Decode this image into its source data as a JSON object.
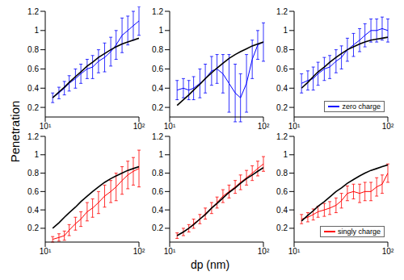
{
  "ylabel": "Penetration",
  "xlabel": "dp (nm)",
  "chart_data": [
    {
      "type": "line",
      "x": [
        12,
        14,
        16,
        18,
        21,
        24,
        28,
        32,
        37,
        43,
        50,
        57,
        66,
        76,
        87,
        100
      ],
      "xlim": [
        10,
        100
      ],
      "xticks": [
        {
          "value": 10,
          "label": "10¹"
        },
        {
          "value": 100,
          "label": "10²"
        }
      ],
      "log": "x",
      "ylim": [
        0.1,
        1.2
      ],
      "yticks": [
        0.2,
        0.4,
        0.6,
        0.8,
        1,
        1.2
      ],
      "series": [
        {
          "color": "#0000ff",
          "values": [
            0.3,
            0.35,
            0.4,
            0.45,
            0.5,
            0.55,
            0.6,
            0.62,
            0.68,
            0.72,
            0.78,
            0.85,
            0.95,
            1.0,
            1.05,
            1.1
          ],
          "error": [
            0.05,
            0.06,
            0.07,
            0.08,
            0.1,
            0.1,
            0.1,
            0.12,
            0.12,
            0.15,
            0.15,
            0.15,
            0.18,
            0.15,
            0.15,
            0.15
          ]
        },
        {
          "color": "#000000",
          "values": [
            0.3,
            0.36,
            0.41,
            0.46,
            0.52,
            0.57,
            0.63,
            0.67,
            0.72,
            0.76,
            0.8,
            0.83,
            0.86,
            0.88,
            0.9,
            0.92
          ]
        }
      ]
    },
    {
      "type": "line",
      "x": [
        12,
        14,
        16,
        18,
        21,
        24,
        28,
        32,
        37,
        43,
        50,
        57,
        66,
        76,
        87,
        100
      ],
      "xlim": [
        10,
        100
      ],
      "xticks": [
        {
          "value": 10,
          "label": "10¹"
        },
        {
          "value": 100,
          "label": "10²"
        }
      ],
      "log": "x",
      "ylim": [
        0.1,
        1.2
      ],
      "yticks": [
        0.2,
        0.4,
        0.6,
        0.8,
        1,
        1.2
      ],
      "series": [
        {
          "color": "#0000ff",
          "values": [
            0.38,
            0.4,
            0.38,
            0.4,
            0.45,
            0.5,
            0.58,
            0.6,
            0.55,
            0.45,
            0.35,
            0.3,
            0.45,
            0.7,
            0.85,
            0.88
          ],
          "error": [
            0.1,
            0.1,
            0.1,
            0.12,
            0.15,
            0.15,
            0.15,
            0.15,
            0.2,
            0.3,
            0.3,
            0.25,
            0.3,
            0.2,
            0.15,
            0.2
          ]
        },
        {
          "color": "#000000",
          "values": [
            0.22,
            0.28,
            0.33,
            0.38,
            0.44,
            0.5,
            0.56,
            0.61,
            0.66,
            0.71,
            0.75,
            0.78,
            0.81,
            0.84,
            0.86,
            0.88
          ]
        }
      ]
    },
    {
      "type": "line",
      "x": [
        12,
        14,
        16,
        18,
        21,
        24,
        28,
        32,
        37,
        43,
        50,
        57,
        66,
        76,
        87,
        100
      ],
      "xlim": [
        10,
        100
      ],
      "xticks": [
        {
          "value": 10,
          "label": "10¹"
        },
        {
          "value": 100,
          "label": "10²"
        }
      ],
      "log": "x",
      "ylim": [
        0.1,
        1.2
      ],
      "yticks": [
        0.2,
        0.4,
        0.6,
        0.8,
        1,
        1.2
      ],
      "legend": "lower right",
      "series": [
        {
          "name": "zero charge",
          "color": "#0000ff",
          "values": [
            0.45,
            0.48,
            0.5,
            0.55,
            0.6,
            0.62,
            0.68,
            0.72,
            0.8,
            0.85,
            0.9,
            0.95,
            1.0,
            1.0,
            1.02,
            1.0
          ],
          "error": [
            0.1,
            0.1,
            0.12,
            0.12,
            0.12,
            0.12,
            0.12,
            0.12,
            0.12,
            0.12,
            0.12,
            0.12,
            0.12,
            0.12,
            0.12,
            0.12
          ]
        },
        {
          "color": "#000000",
          "values": [
            0.4,
            0.46,
            0.52,
            0.57,
            0.62,
            0.67,
            0.72,
            0.76,
            0.8,
            0.83,
            0.86,
            0.88,
            0.9,
            0.91,
            0.92,
            0.93
          ]
        }
      ]
    },
    {
      "type": "line",
      "x": [
        12,
        14,
        16,
        18,
        21,
        24,
        28,
        32,
        37,
        43,
        50,
        57,
        66,
        76,
        87,
        100
      ],
      "xlim": [
        10,
        100
      ],
      "xticks": [
        {
          "value": 10,
          "label": "10¹"
        },
        {
          "value": 100,
          "label": "10²"
        }
      ],
      "log": "x",
      "ylim": [
        0.05,
        1.2
      ],
      "yticks": [
        0.2,
        0.4,
        0.6,
        0.8,
        1,
        1.2
      ],
      "series": [
        {
          "color": "#ff0000",
          "values": [
            0.08,
            0.1,
            0.12,
            0.18,
            0.25,
            0.3,
            0.38,
            0.42,
            0.48,
            0.55,
            0.6,
            0.65,
            0.72,
            0.78,
            0.82,
            0.85
          ],
          "error": [
            0.03,
            0.04,
            0.05,
            0.06,
            0.07,
            0.08,
            0.1,
            0.1,
            0.12,
            0.12,
            0.12,
            0.15,
            0.15,
            0.15,
            0.15,
            0.2
          ]
        },
        {
          "color": "#000000",
          "values": [
            0.2,
            0.26,
            0.32,
            0.37,
            0.43,
            0.49,
            0.55,
            0.6,
            0.65,
            0.7,
            0.74,
            0.77,
            0.8,
            0.83,
            0.85,
            0.87
          ]
        }
      ]
    },
    {
      "type": "line",
      "x": [
        12,
        14,
        16,
        18,
        21,
        24,
        28,
        32,
        37,
        43,
        50,
        57,
        66,
        76,
        87,
        100
      ],
      "xlim": [
        10,
        100
      ],
      "xticks": [
        {
          "value": 10,
          "label": "10¹"
        },
        {
          "value": 100,
          "label": "10²"
        }
      ],
      "log": "x",
      "ylim": [
        0.05,
        1.2
      ],
      "yticks": [
        0.2,
        0.4,
        0.6,
        0.8,
        1,
        1.2
      ],
      "series": [
        {
          "color": "#ff0000",
          "values": [
            0.12,
            0.16,
            0.2,
            0.25,
            0.3,
            0.36,
            0.42,
            0.48,
            0.55,
            0.6,
            0.65,
            0.7,
            0.75,
            0.8,
            0.85,
            0.9
          ],
          "error": [
            0.03,
            0.04,
            0.04,
            0.05,
            0.05,
            0.06,
            0.06,
            0.06,
            0.07,
            0.07,
            0.07,
            0.08,
            0.08,
            0.08,
            0.08,
            0.08
          ]
        },
        {
          "color": "#000000",
          "values": [
            0.12,
            0.16,
            0.2,
            0.24,
            0.3,
            0.35,
            0.42,
            0.47,
            0.53,
            0.59,
            0.64,
            0.69,
            0.74,
            0.78,
            0.82,
            0.86
          ]
        }
      ]
    },
    {
      "type": "line",
      "x": [
        12,
        14,
        16,
        18,
        21,
        24,
        28,
        32,
        37,
        43,
        50,
        57,
        66,
        76,
        87,
        100
      ],
      "xlim": [
        10,
        100
      ],
      "xticks": [
        {
          "value": 10,
          "label": "10¹"
        },
        {
          "value": 100,
          "label": "10²"
        }
      ],
      "log": "x",
      "ylim": [
        0.05,
        1.2
      ],
      "yticks": [
        0.2,
        0.4,
        0.6,
        0.8,
        1,
        1.2
      ],
      "legend": "lower right",
      "series": [
        {
          "name": "singly charge",
          "color": "#ff0000",
          "values": [
            0.3,
            0.32,
            0.35,
            0.38,
            0.4,
            0.42,
            0.45,
            0.5,
            0.58,
            0.6,
            0.58,
            0.6,
            0.6,
            0.65,
            0.68,
            0.8
          ],
          "error": [
            0.05,
            0.05,
            0.06,
            0.06,
            0.07,
            0.07,
            0.08,
            0.08,
            0.08,
            0.08,
            0.1,
            0.1,
            0.1,
            0.1,
            0.1,
            0.1
          ]
        },
        {
          "color": "#000000",
          "values": [
            0.28,
            0.34,
            0.39,
            0.44,
            0.49,
            0.54,
            0.6,
            0.64,
            0.69,
            0.73,
            0.77,
            0.8,
            0.83,
            0.85,
            0.87,
            0.89
          ]
        }
      ]
    }
  ]
}
